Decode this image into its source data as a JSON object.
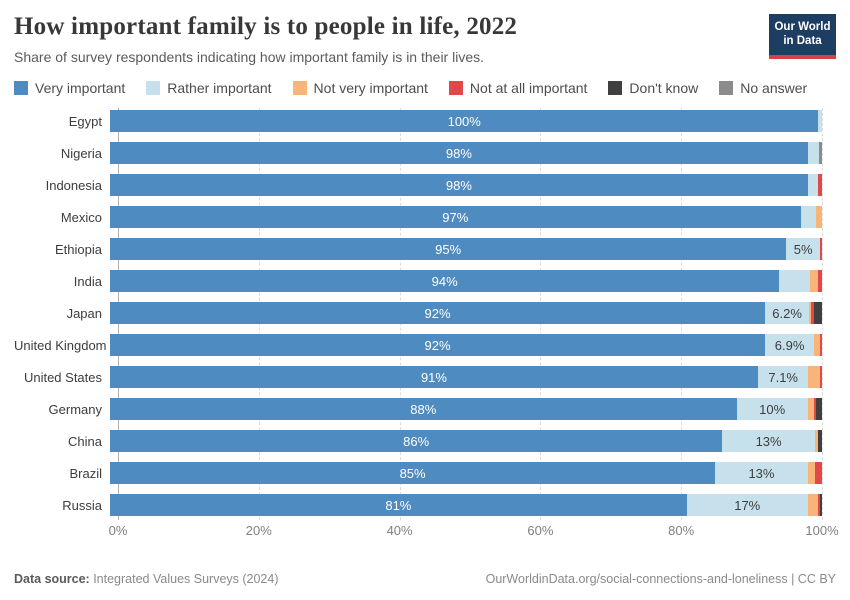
{
  "header": {
    "title": "How important family is to people in life, 2022",
    "subtitle": "Share of survey respondents indicating how important family is in their lives.",
    "logo_line1": "Our World",
    "logo_line2": "in Data"
  },
  "colors": {
    "very": "#4e8bc0",
    "rather": "#c6e1ec",
    "not_very": "#f8b577",
    "not_at_all": "#e2484a",
    "dont_know": "#404040",
    "no_answer": "#8b8b8b",
    "logo_bg": "#1d3d63",
    "logo_underline": "#dc3f3f"
  },
  "legend": [
    {
      "key": "very",
      "label": "Very important"
    },
    {
      "key": "rather",
      "label": "Rather important"
    },
    {
      "key": "not_very",
      "label": "Not very important"
    },
    {
      "key": "not_at_all",
      "label": "Not at all important"
    },
    {
      "key": "dont_know",
      "label": "Don't know"
    },
    {
      "key": "no_answer",
      "label": "No answer"
    }
  ],
  "chart_data": {
    "type": "bar",
    "stacked": true,
    "orientation": "horizontal",
    "unit": "%",
    "xlim": [
      0,
      100
    ],
    "grid": "dashed-vertical",
    "x_ticks": [
      {
        "value": 0,
        "label": "0%"
      },
      {
        "value": 20,
        "label": "20%"
      },
      {
        "value": 40,
        "label": "40%"
      },
      {
        "value": 60,
        "label": "60%"
      },
      {
        "value": 80,
        "label": "80%"
      },
      {
        "value": 100,
        "label": "100%"
      }
    ],
    "series_names": [
      "Very important",
      "Rather important",
      "Not very important",
      "Not at all important",
      "Don't know",
      "No answer"
    ],
    "rows": [
      {
        "country": "Egypt",
        "segments": [
          {
            "key": "very",
            "value": 99.5,
            "label": "100%"
          },
          {
            "key": "rather",
            "value": 0.5
          }
        ]
      },
      {
        "country": "Nigeria",
        "segments": [
          {
            "key": "very",
            "value": 98,
            "label": "98%"
          },
          {
            "key": "rather",
            "value": 1.6
          },
          {
            "key": "no_answer",
            "value": 0.4
          }
        ]
      },
      {
        "country": "Indonesia",
        "segments": [
          {
            "key": "very",
            "value": 98,
            "label": "98%"
          },
          {
            "key": "rather",
            "value": 1.5
          },
          {
            "key": "not_at_all",
            "value": 0.5
          }
        ]
      },
      {
        "country": "Mexico",
        "segments": [
          {
            "key": "very",
            "value": 97,
            "label": "97%"
          },
          {
            "key": "rather",
            "value": 2.2
          },
          {
            "key": "not_very",
            "value": 0.8
          }
        ]
      },
      {
        "country": "Ethiopia",
        "segments": [
          {
            "key": "very",
            "value": 95,
            "label": "95%"
          },
          {
            "key": "rather",
            "value": 4.7,
            "label": "5%"
          },
          {
            "key": "not_at_all",
            "value": 0.3
          }
        ]
      },
      {
        "country": "India",
        "segments": [
          {
            "key": "very",
            "value": 94,
            "label": "94%"
          },
          {
            "key": "rather",
            "value": 4.3
          },
          {
            "key": "not_very",
            "value": 1.1
          },
          {
            "key": "not_at_all",
            "value": 0.6
          }
        ]
      },
      {
        "country": "Japan",
        "segments": [
          {
            "key": "very",
            "value": 92,
            "label": "92%"
          },
          {
            "key": "rather",
            "value": 6.2,
            "label": "6.2%"
          },
          {
            "key": "not_very",
            "value": 0.3
          },
          {
            "key": "not_at_all",
            "value": 0.4
          },
          {
            "key": "dont_know",
            "value": 1.1
          }
        ]
      },
      {
        "country": "United Kingdom",
        "segments": [
          {
            "key": "very",
            "value": 92,
            "label": "92%"
          },
          {
            "key": "rather",
            "value": 6.9,
            "label": "6.9%"
          },
          {
            "key": "not_very",
            "value": 0.8
          },
          {
            "key": "not_at_all",
            "value": 0.3
          }
        ]
      },
      {
        "country": "United States",
        "segments": [
          {
            "key": "very",
            "value": 91,
            "label": "91%"
          },
          {
            "key": "rather",
            "value": 7.1,
            "label": "7.1%"
          },
          {
            "key": "not_very",
            "value": 1.6
          },
          {
            "key": "not_at_all",
            "value": 0.3
          }
        ]
      },
      {
        "country": "Germany",
        "segments": [
          {
            "key": "very",
            "value": 88,
            "label": "88%"
          },
          {
            "key": "rather",
            "value": 10,
            "label": "10%"
          },
          {
            "key": "not_very",
            "value": 0.9
          },
          {
            "key": "not_at_all",
            "value": 0.3
          },
          {
            "key": "dont_know",
            "value": 0.8
          }
        ]
      },
      {
        "country": "China",
        "segments": [
          {
            "key": "very",
            "value": 86,
            "label": "86%"
          },
          {
            "key": "rather",
            "value": 13,
            "label": "13%"
          },
          {
            "key": "not_very",
            "value": 0.5
          },
          {
            "key": "dont_know",
            "value": 0.5
          }
        ]
      },
      {
        "country": "Brazil",
        "segments": [
          {
            "key": "very",
            "value": 85,
            "label": "85%"
          },
          {
            "key": "rather",
            "value": 13,
            "label": "13%"
          },
          {
            "key": "not_very",
            "value": 1.0
          },
          {
            "key": "not_at_all",
            "value": 1.0
          }
        ]
      },
      {
        "country": "Russia",
        "segments": [
          {
            "key": "very",
            "value": 81,
            "label": "81%"
          },
          {
            "key": "rather",
            "value": 17,
            "label": "17%"
          },
          {
            "key": "not_very",
            "value": 1.4
          },
          {
            "key": "not_at_all",
            "value": 0.3
          },
          {
            "key": "dont_know",
            "value": 0.3
          }
        ]
      }
    ]
  },
  "footer": {
    "source_bold": "Data source:",
    "source_rest": " Integrated Values Surveys (2024)",
    "right": "OurWorldinData.org/social-connections-and-loneliness | CC BY"
  }
}
